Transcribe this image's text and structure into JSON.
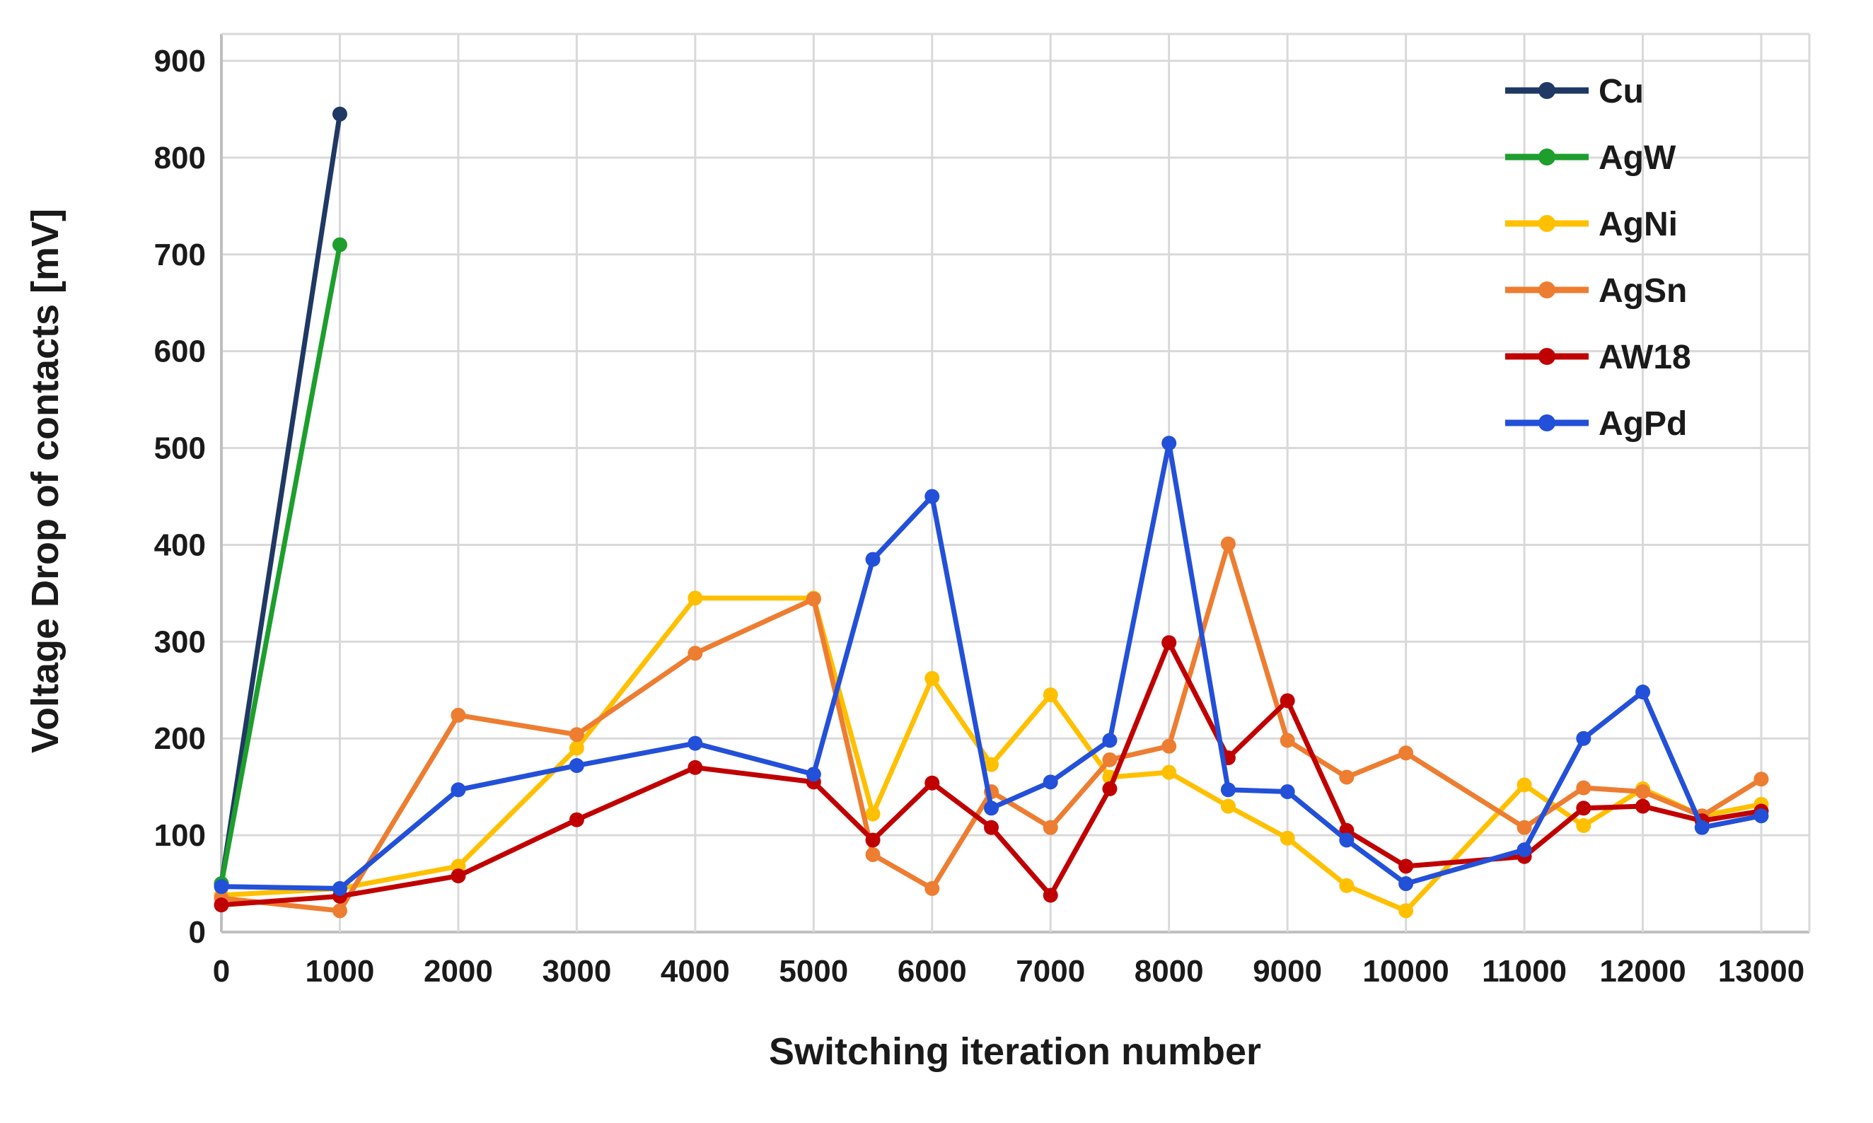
{
  "chart_data": {
    "type": "line",
    "title": "",
    "xlabel": "Switching iteration number",
    "ylabel": "Voltage Drop of contacts [mV]",
    "xlim": [
      0,
      13000
    ],
    "ylim": [
      0,
      900
    ],
    "x_ticks": [
      0,
      1000,
      2000,
      3000,
      4000,
      5000,
      6000,
      7000,
      8000,
      9000,
      10000,
      11000,
      12000,
      13000
    ],
    "y_ticks": [
      0,
      100,
      200,
      300,
      400,
      500,
      600,
      700,
      800,
      900
    ],
    "grid": true,
    "legend_position": "inside-top-right",
    "grid_color": "#d9d9d9",
    "axis_color": "#bfbfbf",
    "text_color": "#1a1a1a",
    "series": [
      {
        "name": "Cu",
        "color": "#1f3864",
        "x": [
          0,
          1000
        ],
        "values": [
          50,
          845
        ]
      },
      {
        "name": "AgW",
        "color": "#1e9e2d",
        "x": [
          0,
          1000
        ],
        "values": [
          50,
          710
        ]
      },
      {
        "name": "AgNi",
        "color": "#ffc000",
        "x": [
          0,
          1000,
          2000,
          3000,
          4000,
          5000,
          5500,
          6000,
          6500,
          7000,
          7500,
          8000,
          8500,
          9000,
          9500,
          10000,
          11000,
          11500,
          12000,
          12500,
          13000
        ],
        "values": [
          38,
          45,
          68,
          190,
          345,
          345,
          122,
          262,
          173,
          245,
          160,
          165,
          130,
          97,
          48,
          22,
          152,
          110,
          148,
          120,
          132
        ]
      },
      {
        "name": "AgSn",
        "color": "#ed7d31",
        "x": [
          0,
          1000,
          2000,
          3000,
          4000,
          5000,
          5500,
          6000,
          6500,
          7000,
          7500,
          8000,
          8500,
          9000,
          9500,
          10000,
          11000,
          11500,
          12000,
          12500,
          13000
        ],
        "values": [
          35,
          22,
          224,
          204,
          288,
          344,
          80,
          45,
          145,
          108,
          178,
          192,
          401,
          198,
          160,
          185,
          108,
          149,
          145,
          120,
          158
        ]
      },
      {
        "name": "AW18",
        "color": "#c00000",
        "x": [
          0,
          1000,
          2000,
          3000,
          4000,
          5000,
          5500,
          6000,
          6500,
          7000,
          7500,
          8000,
          8500,
          9000,
          9500,
          10000,
          11000,
          11500,
          12000,
          12500,
          13000
        ],
        "values": [
          28,
          37,
          58,
          116,
          170,
          155,
          95,
          154,
          108,
          38,
          148,
          299,
          180,
          239,
          105,
          68,
          78,
          128,
          130,
          115,
          125
        ]
      },
      {
        "name": "AgPd",
        "color": "#2350d8",
        "x": [
          0,
          1000,
          2000,
          3000,
          4000,
          5000,
          5500,
          6000,
          6500,
          7000,
          7500,
          8000,
          8500,
          9000,
          9500,
          10000,
          11000,
          11500,
          12000,
          12500,
          13000
        ],
        "values": [
          47,
          45,
          147,
          172,
          195,
          163,
          385,
          450,
          128,
          155,
          198,
          505,
          147,
          145,
          95,
          50,
          85,
          200,
          248,
          108,
          120
        ]
      }
    ]
  }
}
